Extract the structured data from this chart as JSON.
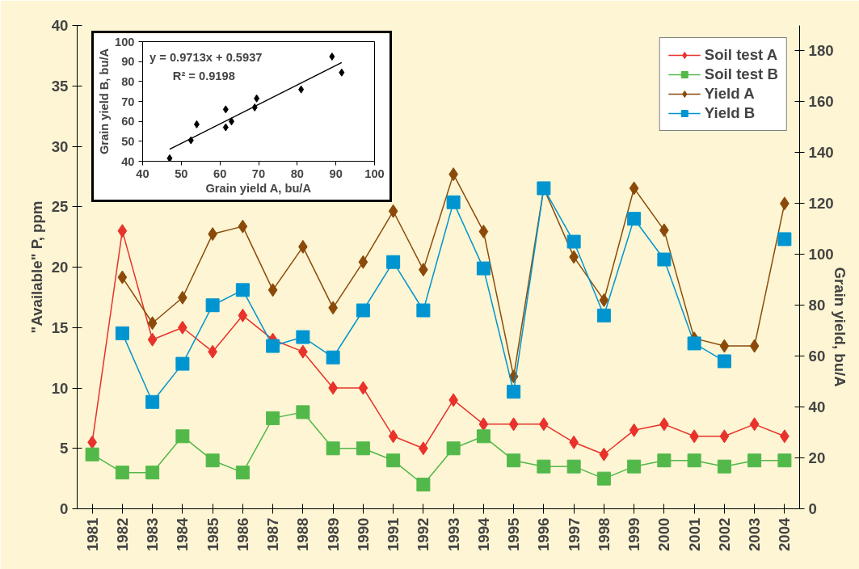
{
  "chart_data": [
    {
      "type": "line",
      "ylabel": "\"Available\" P, ppm",
      "y2label": "Grain yield, bu/A",
      "categories": [
        "1981",
        "1982",
        "1983",
        "1984",
        "1985",
        "1986",
        "1987",
        "1988",
        "1989",
        "1990",
        "1991",
        "1992",
        "1993",
        "1994",
        "1995",
        "1996",
        "1997",
        "1998",
        "1999",
        "2000",
        "2001",
        "2002",
        "2003",
        "2004"
      ],
      "series": [
        {
          "name": "Soil test A",
          "color": "#e8322b",
          "marker": "diamond",
          "values": [
            5.5,
            23,
            14,
            15,
            13,
            16,
            14,
            13,
            10,
            10,
            6,
            5,
            9,
            7,
            7,
            7,
            5.5,
            4.5,
            6.5,
            7,
            6,
            6,
            7,
            6
          ]
        },
        {
          "name": "Soil test B",
          "color": "#52b84a",
          "marker": "square",
          "values": [
            4.5,
            3,
            3,
            6,
            4,
            3,
            7.5,
            8,
            5,
            5,
            4,
            2,
            5,
            6,
            4,
            3.5,
            3.5,
            2.5,
            3.5,
            4,
            4,
            3.5,
            4,
            4
          ]
        },
        {
          "name": "Yield A",
          "color": "#8b4a0a",
          "marker": "diamond",
          "axis": "y2",
          "values": [
            null,
            91,
            73,
            83,
            108,
            111,
            86,
            103,
            79,
            97,
            117,
            94,
            131.5,
            109,
            52,
            126,
            99,
            82,
            126,
            109.5,
            67,
            64,
            64,
            120
          ]
        },
        {
          "name": "Yield B",
          "color": "#0095d0",
          "marker": "square",
          "axis": "y2",
          "values": [
            null,
            69,
            42,
            57,
            80,
            86,
            64,
            67.5,
            59.5,
            78,
            97,
            78,
            120.5,
            94.5,
            46,
            126,
            105,
            76,
            114,
            98,
            65,
            58,
            null,
            106
          ]
        }
      ],
      "ylim": [
        0,
        40
      ],
      "yticks": [
        0,
        5,
        10,
        15,
        20,
        25,
        30,
        35,
        40
      ],
      "y2lim": [
        0,
        190
      ],
      "y2ticks": [
        0,
        20,
        40,
        60,
        80,
        100,
        120,
        140,
        160,
        180
      ],
      "legend": "top right",
      "grid": false
    },
    {
      "type": "scatter",
      "xlabel": "Grain yield A, bu/A",
      "ylabel": "Grain yield B, bu/A",
      "series": [
        {
          "type": "scatter",
          "color": "#000000",
          "marker": "diamond",
          "x": [
            47,
            52.5,
            54,
            61.5,
            61.5,
            63,
            69,
            69.5,
            81,
            89,
            91.5
          ],
          "values": [
            41.5,
            50.5,
            58.5,
            57,
            66,
            60,
            67,
            71.5,
            76,
            92.5,
            84.5
          ]
        },
        {
          "type": "line",
          "color": "#000000",
          "marker": "none",
          "x": [
            47,
            91.5
          ],
          "values": [
            46,
            89.5
          ]
        }
      ],
      "annotations": [
        "y = 0.9713x + 0.5937",
        "R² = 0.9198"
      ],
      "xlim": [
        40,
        100
      ],
      "xticks": [
        40,
        50,
        60,
        70,
        80,
        90,
        100
      ],
      "ylim": [
        40,
        100
      ],
      "yticks": [
        40,
        50,
        60,
        70,
        80,
        90,
        100
      ],
      "grid": false
    }
  ]
}
